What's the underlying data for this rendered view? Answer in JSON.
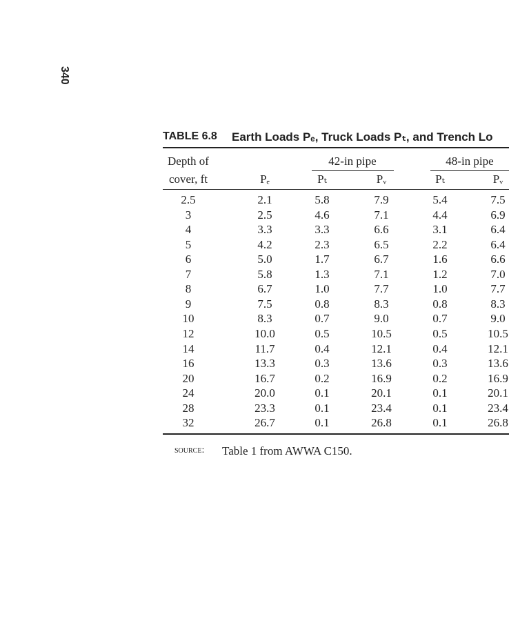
{
  "page_number": "340",
  "table": {
    "label": "TABLE 6.8",
    "title": "Earth Loads Pₑ, Truck Loads Pₜ, and Trench Lo",
    "groups": [
      "42-in pipe",
      "48-in pipe"
    ],
    "header": [
      "Depth of",
      "cover, ft",
      "Pₑ",
      "Pₜ",
      "Pᵥ",
      "Pₜ",
      "Pᵥ"
    ],
    "rows": [
      [
        "2.5",
        "2.1",
        "5.8",
        "7.9",
        "5.4",
        "7.5"
      ],
      [
        "3",
        "2.5",
        "4.6",
        "7.1",
        "4.4",
        "6.9"
      ],
      [
        "4",
        "3.3",
        "3.3",
        "6.6",
        "3.1",
        "6.4"
      ],
      [
        "5",
        "4.2",
        "2.3",
        "6.5",
        "2.2",
        "6.4"
      ],
      [
        "6",
        "5.0",
        "1.7",
        "6.7",
        "1.6",
        "6.6"
      ],
      [
        "7",
        "5.8",
        "1.3",
        "7.1",
        "1.2",
        "7.0"
      ],
      [
        "8",
        "6.7",
        "1.0",
        "7.7",
        "1.0",
        "7.7"
      ],
      [
        "9",
        "7.5",
        "0.8",
        "8.3",
        "0.8",
        "8.3"
      ],
      [
        "10",
        "8.3",
        "0.7",
        "9.0",
        "0.7",
        "9.0"
      ],
      [
        "12",
        "10.0",
        "0.5",
        "10.5",
        "0.5",
        "10.5"
      ],
      [
        "14",
        "11.7",
        "0.4",
        "12.1",
        "0.4",
        "12.1"
      ],
      [
        "16",
        "13.3",
        "0.3",
        "13.6",
        "0.3",
        "13.6"
      ],
      [
        "20",
        "16.7",
        "0.2",
        "16.9",
        "0.2",
        "16.9"
      ],
      [
        "24",
        "20.0",
        "0.1",
        "20.1",
        "0.1",
        "20.1"
      ],
      [
        "28",
        "23.3",
        "0.1",
        "23.4",
        "0.1",
        "23.4"
      ],
      [
        "32",
        "26.7",
        "0.1",
        "26.8",
        "0.1",
        "26.8"
      ]
    ],
    "source_label": "Source:",
    "source": "Table 1 from AWWA C150."
  }
}
